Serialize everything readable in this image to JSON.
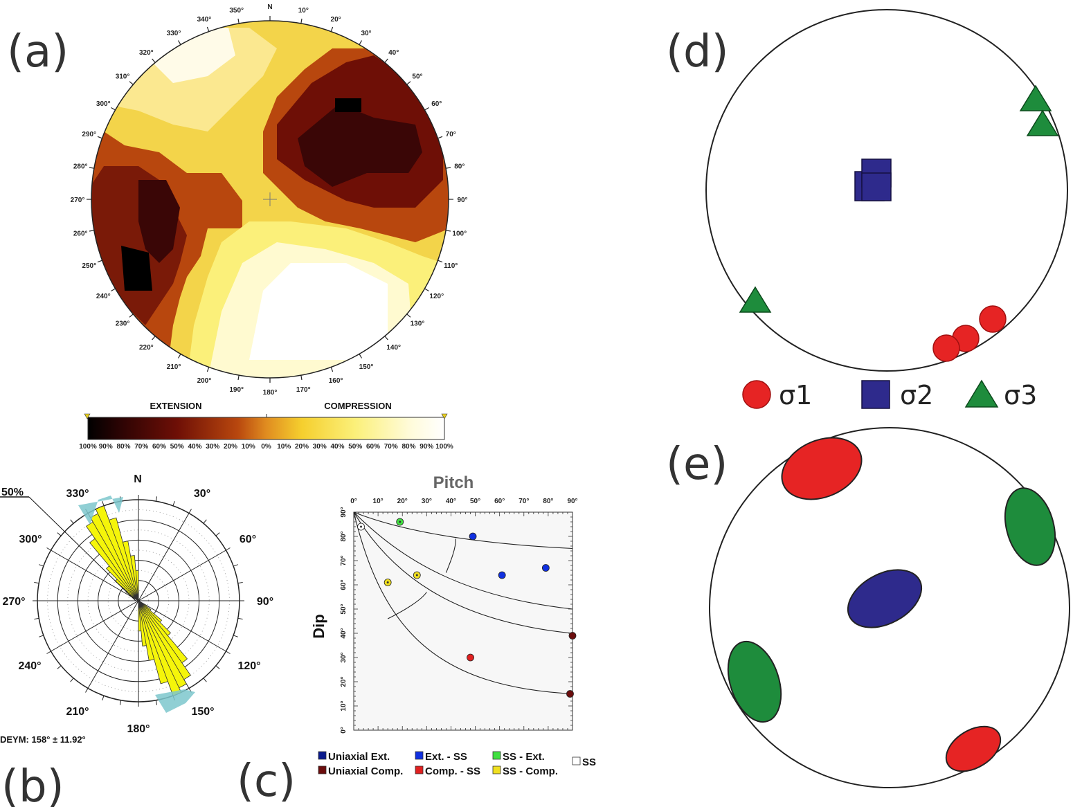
{
  "panels": {
    "a": {
      "label": "(a)",
      "north": "N",
      "azimuth_labels": [
        "10°",
        "20°",
        "30°",
        "40°",
        "50°",
        "60°",
        "70°",
        "80°",
        "90°",
        "100°",
        "110°",
        "120°",
        "130°",
        "140°",
        "150°",
        "160°",
        "170°",
        "180°",
        "190°",
        "200°",
        "210°",
        "220°",
        "230°",
        "240°",
        "250°",
        "260°",
        "270°",
        "280°",
        "290°",
        "300°",
        "310°",
        "320°",
        "330°",
        "340°",
        "350°"
      ],
      "colorbar": {
        "extension_label": "EXTENSION",
        "compression_label": "COMPRESSION",
        "ticks": [
          "100%",
          "90%",
          "80%",
          "70%",
          "60%",
          "50%",
          "40%",
          "30%",
          "20%",
          "10%",
          "0%",
          "10%",
          "20%",
          "30%",
          "40%",
          "50%",
          "60%",
          "70%",
          "80%",
          "90%",
          "100%"
        ]
      }
    },
    "b": {
      "label": "(b)",
      "north": "N",
      "scale_label": "50%",
      "angle_labels": [
        "30°",
        "60°",
        "90°",
        "120°",
        "150°",
        "180°",
        "210°",
        "240°",
        "270°",
        "300°",
        "330°"
      ],
      "result": "DEYM: 158° ± 11.92°"
    },
    "c": {
      "label": "(c)",
      "title": "Pitch",
      "ylabel": "Dip",
      "legend": [
        {
          "label": "Uniaxial Ext.",
          "color": "#0a1a8c"
        },
        {
          "label": "Uniaxial Comp.",
          "color": "#6b0d0d"
        },
        {
          "label": "Ext. - SS",
          "color": "#1030e0"
        },
        {
          "label": "Comp. - SS",
          "color": "#e02020"
        },
        {
          "label": "SS - Ext.",
          "color": "#40e040"
        },
        {
          "label": "SS - Comp.",
          "color": "#f0e020"
        },
        {
          "label": "SS",
          "color": "#ffffff"
        }
      ]
    },
    "d": {
      "label": "(d)",
      "legend": [
        {
          "label": "σ1",
          "color": "#e62424"
        },
        {
          "label": "σ2",
          "color": "#2e2a8c"
        },
        {
          "label": "σ3",
          "color": "#1e8c3c"
        }
      ]
    },
    "e": {
      "label": "(e)"
    }
  },
  "chart_data": {
    "type": "scatter",
    "title": "Pitch",
    "xlabel": "Pitch",
    "ylabel": "Dip",
    "xlim": [
      0,
      90
    ],
    "ylim": [
      0,
      90
    ],
    "x_ticks": [
      "0°",
      "10°",
      "20°",
      "30°",
      "40°",
      "50°",
      "60°",
      "70°",
      "80°",
      "90°"
    ],
    "y_ticks": [
      "0°",
      "10°",
      "20°",
      "30°",
      "40°",
      "50°",
      "60°",
      "70°",
      "80°",
      "90°"
    ],
    "series": [
      {
        "name": "Uniaxial Comp.",
        "color": "#6b0d0d",
        "points": [
          [
            90,
            39
          ],
          [
            89,
            15
          ]
        ]
      },
      {
        "name": "Ext. - SS",
        "color": "#1030e0",
        "points": [
          [
            49,
            80
          ],
          [
            61,
            64
          ],
          [
            79,
            67
          ]
        ]
      },
      {
        "name": "Comp. - SS",
        "color": "#e02020",
        "points": [
          [
            48,
            30
          ]
        ]
      },
      {
        "name": "SS - Ext.",
        "color": "#40e040",
        "points": [
          [
            19,
            86
          ]
        ]
      },
      {
        "name": "SS - Comp.",
        "color": "#f0e020",
        "points": [
          [
            14,
            61
          ],
          [
            26,
            64
          ]
        ]
      },
      {
        "name": "SS",
        "color": "#ffffff",
        "points": [
          [
            3,
            84
          ]
        ]
      }
    ]
  }
}
